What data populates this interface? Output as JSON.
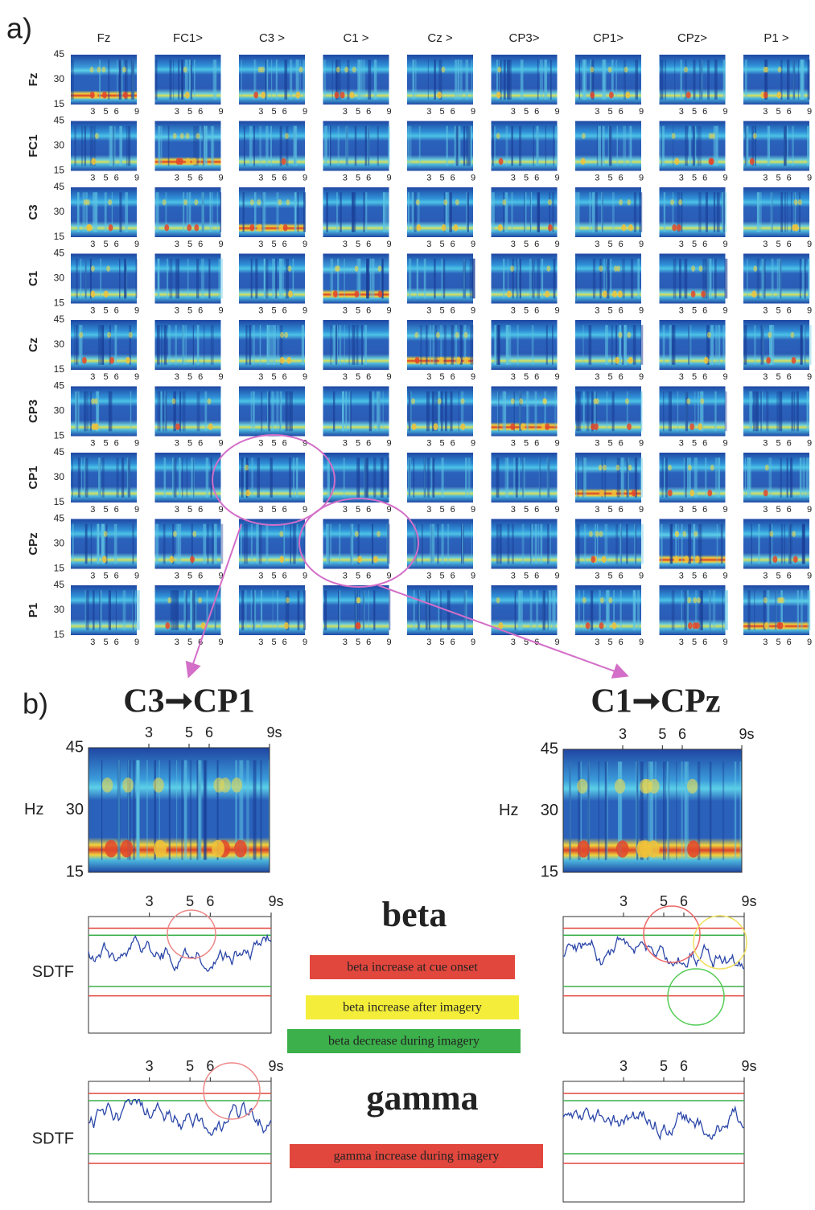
{
  "panel_a": {
    "label": "a)",
    "columns": [
      "Fz",
      "FC1>",
      "C3 >",
      "C1 >",
      "Cz >",
      "CP3>",
      "CP1>",
      "CPz>",
      "P1 >"
    ],
    "rows": [
      "Fz",
      "FC1",
      "C3",
      "C1",
      "Cz",
      "CP3",
      "CP1",
      "CPz",
      "P1"
    ],
    "y_ticks": [
      "45",
      "30",
      "15"
    ],
    "x_ticks": [
      "3",
      "5",
      "6",
      "9"
    ]
  },
  "panel_b": {
    "label": "b)",
    "plots": [
      {
        "title": "C3➞CP1"
      },
      {
        "title": "C1➞CPz"
      }
    ],
    "y_ticks": [
      "45",
      "30",
      "15"
    ],
    "y_unit": "Hz",
    "x_ticks": [
      "3",
      "5",
      "6",
      "9s"
    ],
    "sdtf_label": "SDTF",
    "beta": {
      "title": "beta",
      "notes": [
        {
          "text": "beta increase at cue onset",
          "color": "#e2473d"
        },
        {
          "text": "beta increase after imagery",
          "color": "#f4ee3a"
        },
        {
          "text": "beta decrease during imagery",
          "color": "#3cb04a"
        }
      ]
    },
    "gamma": {
      "title": "gamma",
      "notes": [
        {
          "text": "gamma increase during imagery",
          "color": "#e2473d"
        }
      ]
    }
  }
}
